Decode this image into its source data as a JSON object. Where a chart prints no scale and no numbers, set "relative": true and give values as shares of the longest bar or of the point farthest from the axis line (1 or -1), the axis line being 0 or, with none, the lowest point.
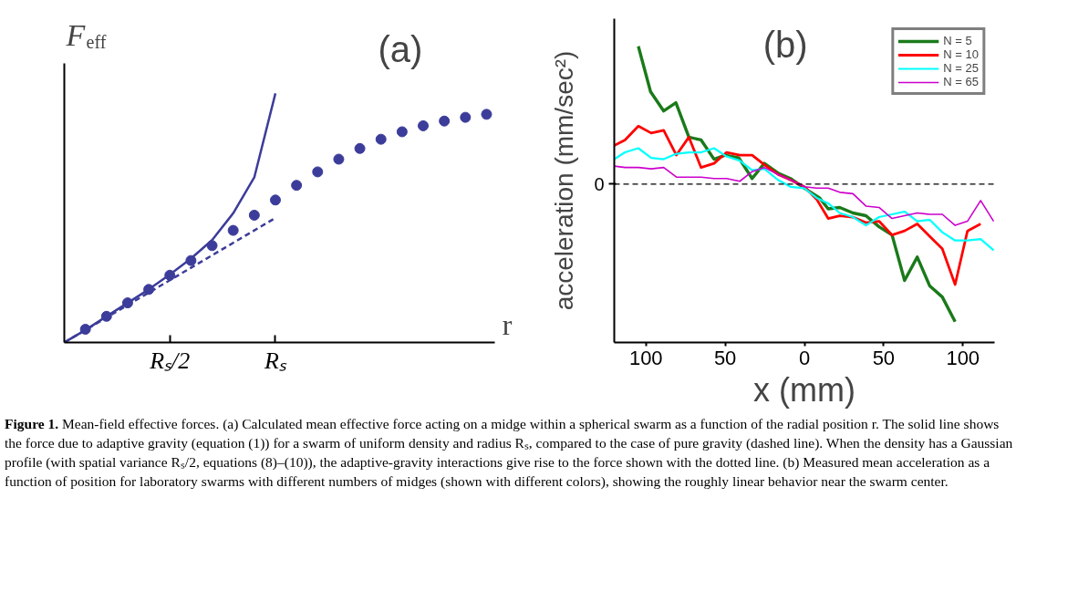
{
  "chart_data": [
    {
      "type": "line",
      "title": "(a)",
      "xlabel": "r",
      "ylabel": "F$_{eff}$",
      "relative": true,
      "tick_labels": "x",
      "categories": [
        null,
        null,
        null,
        null,
        null,
        "Rₛ/2",
        null,
        null,
        null,
        null,
        "Rₛ",
        null,
        null,
        null,
        null,
        null,
        null,
        null,
        null,
        null,
        null
      ],
      "series": [
        {
          "type": "line",
          "line_style": "solid",
          "color": "#3c3c9a",
          "values": [
            0,
            0.05,
            0.105,
            0.159,
            0.213,
            0.273,
            0.337,
            0.411,
            0.519,
            0.663,
            1.0,
            null,
            null,
            null,
            null,
            null,
            null,
            null,
            null,
            null,
            null
          ]
        },
        {
          "type": "line",
          "line_style": "dashed",
          "color": "#3c3c9a",
          "values": [
            0,
            0.05,
            0.1,
            0.15,
            0.2,
            0.25,
            0.3,
            0.35,
            0.4,
            0.45,
            0.5,
            null,
            null,
            null,
            null,
            null,
            null,
            null,
            null,
            null,
            null
          ]
        },
        {
          "type": "scatter",
          "marker": "circle",
          "color": "#3c3c9a",
          "values": [
            null,
            0.053,
            0.105,
            0.159,
            0.213,
            0.27,
            0.329,
            0.389,
            0.45,
            0.511,
            0.572,
            0.631,
            0.685,
            0.736,
            0.779,
            0.816,
            0.846,
            0.87,
            0.889,
            0.904,
            0.916
          ]
        }
      ]
    },
    {
      "type": "line",
      "title": "(b)",
      "xlabel": "x (mm)",
      "ylabel": "acceleration (mm/sec²)",
      "relative": true,
      "tick_labels": "x",
      "legend": "top right",
      "xlim": [
        -120,
        120
      ],
      "xticks": [
        {
          "value": -100,
          "label": "100"
        },
        {
          "value": -50,
          "label": "50"
        },
        0,
        50,
        100
      ],
      "ref_lines": [
        {
          "axis": "y",
          "value": 0,
          "label": "0",
          "line_style": "dashed",
          "color": "#000000"
        }
      ],
      "annotations": [
        "Figure 1. Mean-field effective forces. (a) Calculated mean effective force acting on a midge within a spherical swarm as a function of the radial position r. The solid line shows the force due to adaptive gravity (equation (1)) for a swarm of uniform density and radius Rₛ, compared to the case of pure gravity (dashed line). When the density has a Gaussian profile (with spatial variance Rₛ/2, equations (8)–(10)), the adaptive-gravity interactions give rise to the force shown with the dotted line. (b) Measured mean acceleration as a function of position for laboratory swarms with different numbers of midges (shown with different colors), showing the roughly linear behavior near the swarm center."
      ],
      "series": [
        {
          "name": "N = 5",
          "color": "#1a7a1a",
          "x": [
            -104.8,
            -97.1,
            -88.8,
            -81.1,
            -72.9,
            -65.2,
            -57.0,
            -50.0,
            -41.4,
            -33.0,
            -25.3,
            -16.7,
            -8.8,
            0,
            9.5,
            15.0,
            22.3,
            30.6,
            38.8,
            47.1,
            55.3,
            63.2,
            71.2,
            79.1,
            87.0,
            95.1
          ],
          "values": [
            1.0,
            0.67,
            0.53,
            0.59,
            0.34,
            0.32,
            0.18,
            0.21,
            0.19,
            0.04,
            0.15,
            0.08,
            0.04,
            -0.03,
            -0.1,
            -0.18,
            -0.17,
            -0.21,
            -0.23,
            -0.31,
            -0.37,
            -0.7,
            -0.53,
            -0.74,
            -0.82,
            -1.0
          ]
        },
        {
          "name": "N = 10",
          "color": "#ff0000",
          "x": [
            -120,
            -113.2,
            -104.8,
            -96.7,
            -88.8,
            -80.8,
            -72.9,
            -65.2,
            -57.0,
            -49.1,
            -40.8,
            -33.0,
            -25.3,
            -16.7,
            -8.8,
            0,
            7.7,
            15.0,
            22.3,
            30.6,
            38.8,
            47.1,
            55.3,
            63.2,
            71.2,
            79.1,
            87.0,
            95.1,
            102.9,
            111.2
          ],
          "values": [
            0.28,
            0.32,
            0.42,
            0.37,
            0.39,
            0.21,
            0.34,
            0.12,
            0.15,
            0.23,
            0.21,
            0.21,
            0.14,
            0.07,
            0.03,
            -0.02,
            -0.11,
            -0.25,
            -0.23,
            -0.24,
            -0.28,
            -0.27,
            -0.37,
            -0.34,
            -0.29,
            -0.38,
            -0.47,
            -0.73,
            -0.34,
            -0.29
          ]
        },
        {
          "name": "N = 25",
          "color": "#00ffff",
          "x": [
            -120,
            -113.2,
            -104.8,
            -96.7,
            -88.8,
            -80.8,
            -72.9,
            -65.2,
            -57.0,
            -49.1,
            -40.8,
            -33.0,
            -25.3,
            -16.7,
            -8.8,
            0,
            7.7,
            15.0,
            22.3,
            30.6,
            38.8,
            47.1,
            55.3,
            63.2,
            71.2,
            79.1,
            87.0,
            95.1,
            102.9,
            111.2,
            119.4
          ],
          "values": [
            0.18,
            0.23,
            0.26,
            0.19,
            0.18,
            0.22,
            0.23,
            0.23,
            0.26,
            0.2,
            0.17,
            0.1,
            0.11,
            0.03,
            -0.02,
            -0.03,
            -0.1,
            -0.14,
            -0.21,
            -0.24,
            -0.3,
            -0.24,
            -0.22,
            -0.2,
            -0.27,
            -0.26,
            -0.35,
            -0.41,
            -0.41,
            -0.4,
            -0.48
          ]
        },
        {
          "name": "N = 65",
          "color": "#cc00cc",
          "x": [
            -120,
            -113.2,
            -104.8,
            -96.7,
            -88.8,
            -80.8,
            -72.9,
            -65.2,
            -57.0,
            -49.1,
            -40.8,
            -33.0,
            -25.3,
            -16.7,
            -8.8,
            0,
            7.7,
            15.0,
            22.3,
            30.6,
            38.8,
            47.1,
            55.3,
            63.2,
            71.2,
            79.1,
            87.0,
            95.1,
            102.9,
            111.2,
            119.4
          ],
          "values": [
            0.13,
            0.12,
            0.12,
            0.11,
            0.12,
            0.05,
            0.05,
            0.05,
            0.04,
            0.04,
            0.02,
            0.09,
            0.12,
            0.07,
            0.03,
            -0.02,
            -0.03,
            -0.03,
            -0.06,
            -0.07,
            -0.16,
            -0.17,
            -0.25,
            -0.23,
            -0.21,
            -0.22,
            -0.22,
            -0.3,
            -0.27,
            -0.12,
            -0.27
          ]
        }
      ]
    }
  ]
}
